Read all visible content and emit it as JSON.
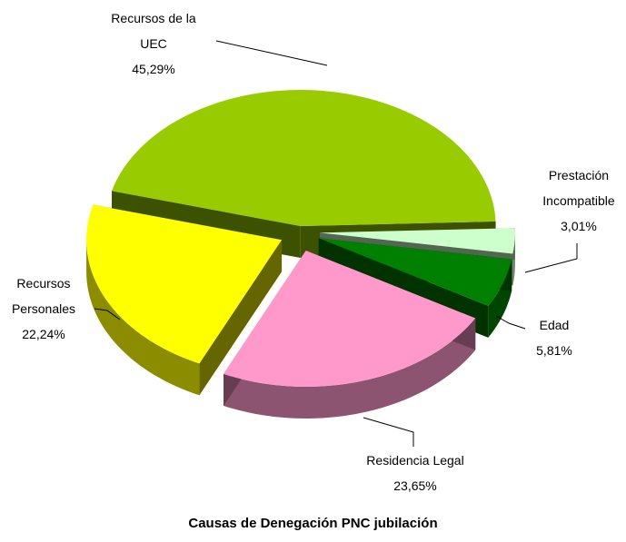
{
  "chart_data": {
    "type": "pie",
    "title": "Causas de Denegación PNC jubilación",
    "categories": [
      "Recursos de la UEC",
      "Prestación Incompatible",
      "Edad",
      "Residencia Legal",
      "Recursos Personales"
    ],
    "values": [
      45.29,
      3.01,
      5.81,
      23.65,
      22.24
    ],
    "value_labels": [
      "45,29%",
      "3,01%",
      "5,81%",
      "23,65%",
      "22,24%"
    ],
    "colors": [
      "#99cc00",
      "#ccffcc",
      "#008000",
      "#ff99cc",
      "#ffff00"
    ]
  }
}
